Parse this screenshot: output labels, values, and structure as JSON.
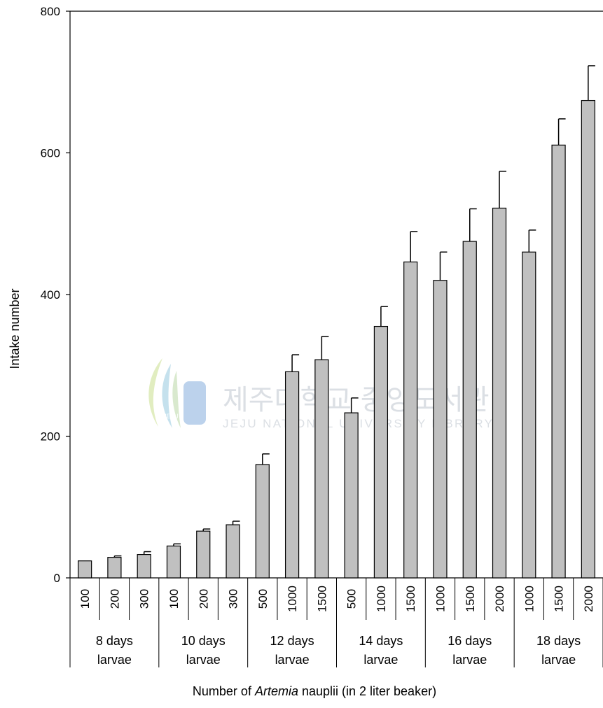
{
  "chart_data": {
    "type": "bar",
    "ylabel": "Intake number",
    "xlabel_parts": [
      "Number of ",
      "Artemia",
      " nauplii (in 2 liter beaker)"
    ],
    "ylim": [
      0,
      800
    ],
    "yticks": [
      0,
      200,
      400,
      600,
      800
    ],
    "grid": false,
    "bar_color": "#c0c0c0",
    "groups": [
      {
        "line1": "8 days",
        "line2": "larvae",
        "categories": [
          "100",
          "200",
          "300"
        ],
        "values": [
          24,
          29,
          33
        ],
        "errors": [
          0,
          2,
          4
        ]
      },
      {
        "line1": "10 days",
        "line2": "larvae",
        "categories": [
          "100",
          "200",
          "300"
        ],
        "values": [
          45,
          66,
          75
        ],
        "errors": [
          3,
          3,
          5
        ]
      },
      {
        "line1": "12 days",
        "line2": "larvae",
        "categories": [
          "500",
          "1000",
          "1500"
        ],
        "values": [
          160,
          291,
          308
        ],
        "errors": [
          15,
          24,
          33
        ]
      },
      {
        "line1": "14 days",
        "line2": "larvae",
        "categories": [
          "500",
          "1000",
          "1500"
        ],
        "values": [
          233,
          355,
          446
        ],
        "errors": [
          21,
          28,
          43
        ]
      },
      {
        "line1": "16 days",
        "line2": "larvae",
        "categories": [
          "1000",
          "1500",
          "2000"
        ],
        "values": [
          420,
          475,
          522
        ],
        "errors": [
          40,
          46,
          52
        ]
      },
      {
        "line1": "18 days",
        "line2": "larvae",
        "categories": [
          "1000",
          "1500",
          "2000"
        ],
        "values": [
          460,
          611,
          674
        ],
        "errors": [
          31,
          37,
          49
        ]
      }
    ]
  },
  "watermark": {
    "korean": "제주대학교 중앙도서관",
    "english": "JEJU NATIONAL UNIVERSITY LIBRARY",
    "logo_text": "JEJU"
  }
}
